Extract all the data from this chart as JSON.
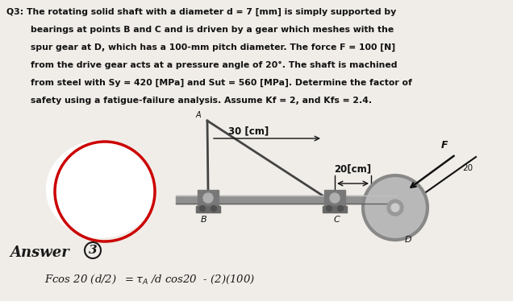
{
  "background_color": "#c8c4bc",
  "page_color": "#f0ede8",
  "text_color": "#111111",
  "handwriting_color": "#1a1a1a",
  "shaft_color": "#888888",
  "bearing_color": "#777777",
  "gear_color": "#aaaaaa",
  "q_lines": [
    "Q3: The rotating solid shaft with a diameter d = 7 [mm] is simply supported by",
    "        bearings at points B and C and is driven by a gear which meshes with the",
    "        spur gear at D, which has a 100-mm pitch diameter. The force F = 100 [N]",
    "        from the drive gear acts at a pressure angle of 20°. The shaft is machined",
    "        from steel with Sy = 420 [MPa] and Sut = 560 [MPa]. Determine the factor of",
    "        safety using a fatigue-failure analysis. Assume Kf = 2, and Kfs = 2.4."
  ],
  "label_30cm": "30 [cm]",
  "label_20cm": "20[cm]",
  "label_F": "F",
  "label_20deg": "20",
  "label_A": "A",
  "label_B": "B",
  "label_C": "C",
  "label_D": "D",
  "answer_label": "Answer",
  "answer_num": "3",
  "formula_line": "Fcos 20 (d/2)  =TA /d cos20  - (2)(100)"
}
